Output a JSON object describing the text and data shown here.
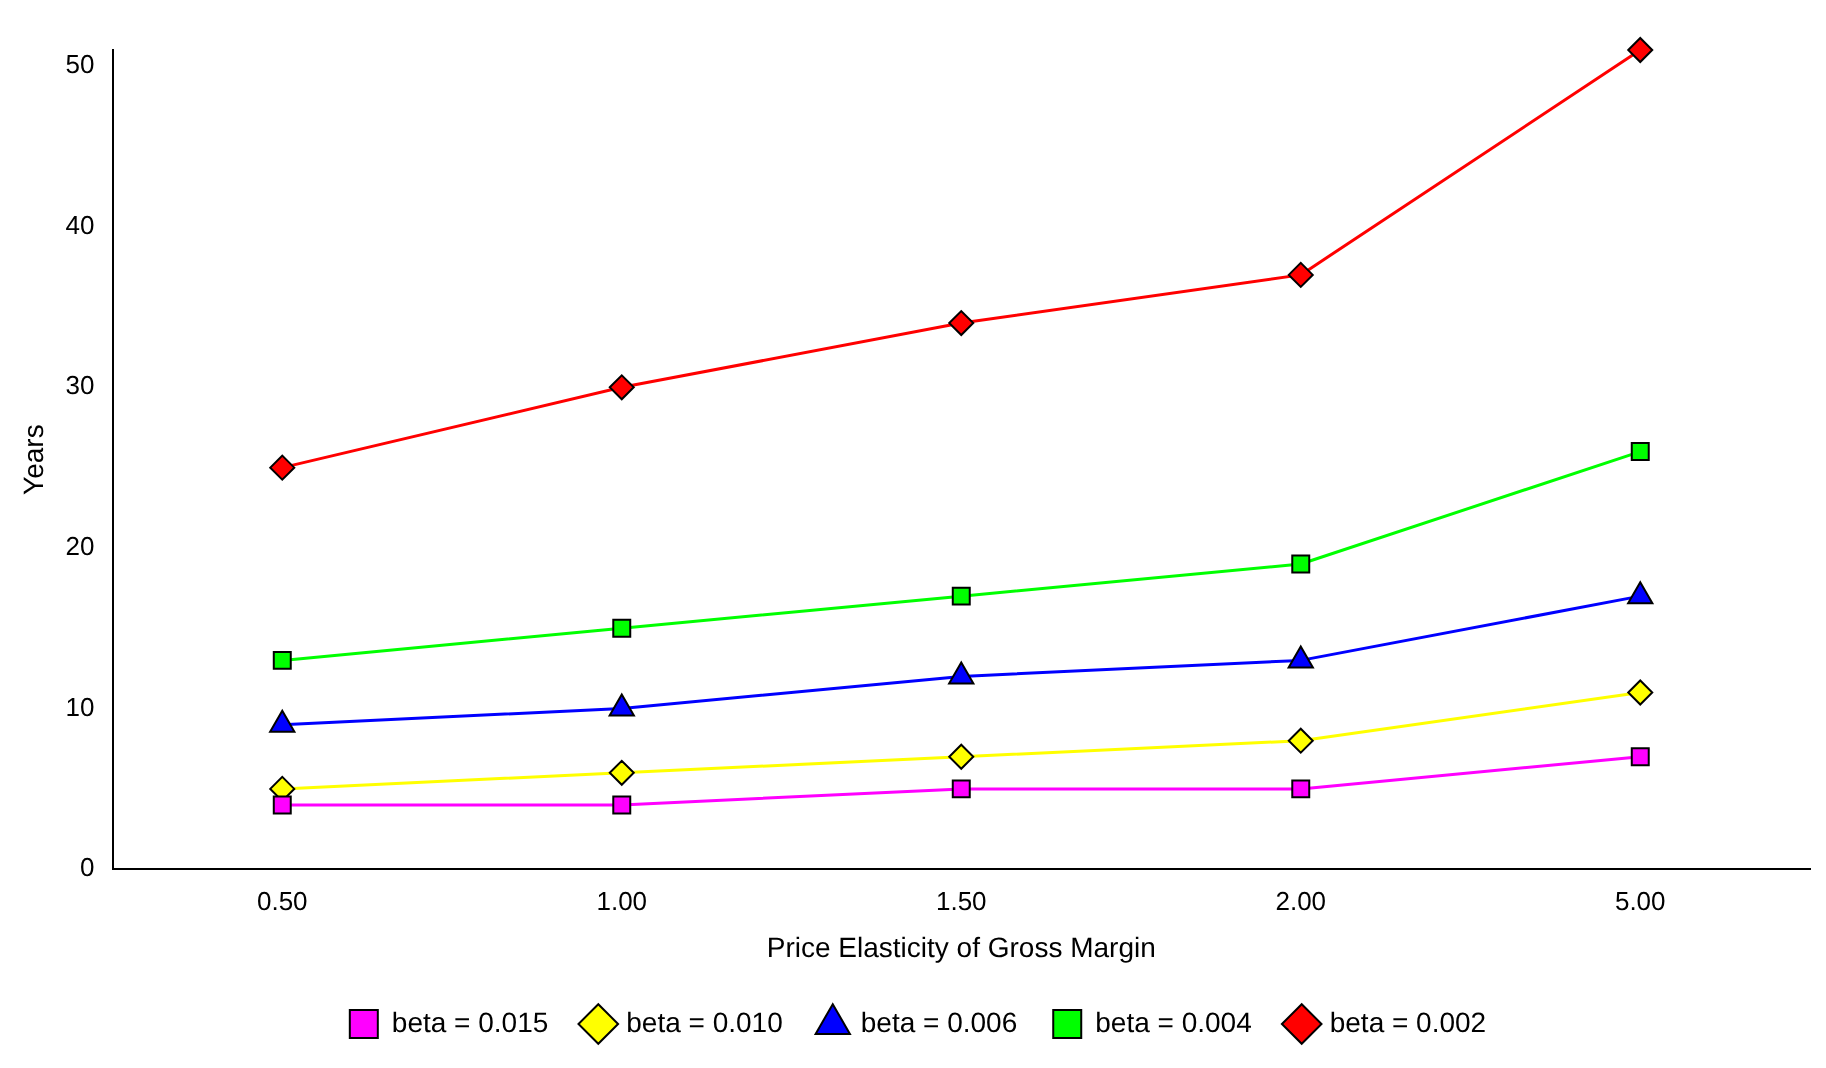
{
  "chart_data": {
    "type": "line",
    "xlabel": "Price Elasticity of Gross Margin",
    "ylabel": "Years",
    "categories": [
      "0.50",
      "1.00",
      "1.50",
      "2.00",
      "5.00"
    ],
    "series": [
      {
        "name": "beta = 0.015",
        "color": "#ff00ff",
        "marker": "square",
        "values": [
          4,
          4,
          5,
          5,
          7
        ]
      },
      {
        "name": "beta = 0.010",
        "color": "#ffff00",
        "marker": "diamond",
        "values": [
          5,
          6,
          7,
          8,
          11
        ]
      },
      {
        "name": "beta = 0.006",
        "color": "#0000ff",
        "marker": "triangle",
        "values": [
          9,
          10,
          12,
          13,
          17
        ]
      },
      {
        "name": "beta = 0.004",
        "color": "#00ff00",
        "marker": "square",
        "values": [
          13,
          15,
          17,
          19,
          26
        ]
      },
      {
        "name": "beta = 0.002",
        "color": "#ff0000",
        "marker": "diamond",
        "values": [
          25,
          30,
          34,
          37,
          51
        ]
      }
    ],
    "ylim": [
      0,
      51
    ],
    "yticks": [
      0,
      10,
      20,
      30,
      40,
      50
    ],
    "grid": false,
    "legend": "bottom",
    "line_style": "solid"
  }
}
